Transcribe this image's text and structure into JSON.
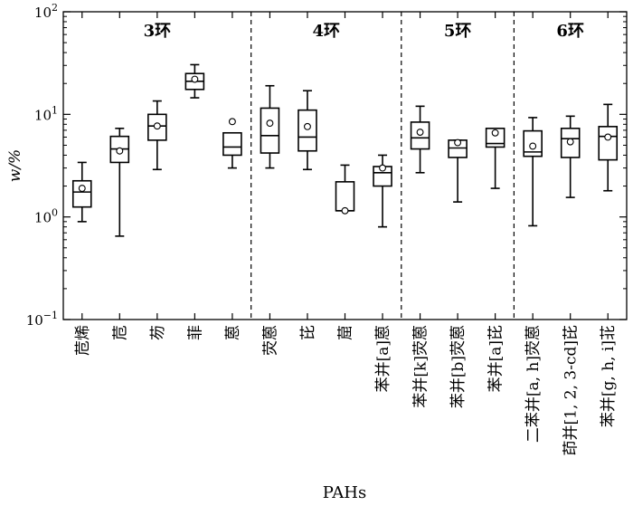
{
  "chart_data": {
    "type": "boxplot",
    "xlabel": "PAHs",
    "ylabel": "w/%",
    "yscale": "log",
    "ylim": [
      0.1,
      100
    ],
    "yticks": [
      {
        "value": 0.1,
        "base": "10",
        "exp": "−1"
      },
      {
        "value": 1,
        "base": "10",
        "exp": "0"
      },
      {
        "value": 10,
        "base": "10",
        "exp": "1"
      },
      {
        "value": 100,
        "base": "10",
        "exp": "2"
      }
    ],
    "groups": [
      {
        "label": "3环",
        "count": 5
      },
      {
        "label": "4环",
        "count": 4
      },
      {
        "label": "5环",
        "count": 3
      },
      {
        "label": "6环",
        "count": 3
      }
    ],
    "categories": [
      "苊烯",
      "苊",
      "芴",
      "菲",
      "蒽",
      "荧蒽",
      "芘",
      "䓛",
      "苯并[a]蒽",
      "苯并[k]荧蒽",
      "苯并[b]荧蒽",
      "苯并[a]芘",
      "二苯并[a, h]荧蒽",
      "茚并[1, 2, 3-cd]芘",
      "苯并[g, h, i]苝"
    ],
    "boxes": [
      {
        "min": 0.9,
        "q1": 1.25,
        "median": 1.75,
        "q3": 2.25,
        "max": 3.4,
        "mean": 1.9
      },
      {
        "min": 0.65,
        "q1": 3.4,
        "median": 4.6,
        "q3": 6.1,
        "max": 7.3,
        "mean": 4.4
      },
      {
        "min": 2.9,
        "q1": 5.6,
        "median": 7.7,
        "q3": 10.0,
        "max": 13.5,
        "mean": 7.7
      },
      {
        "min": 14.5,
        "q1": 17.5,
        "median": 21.0,
        "q3": 25.0,
        "max": 30.5,
        "mean": 22.0
      },
      {
        "min": 3.0,
        "q1": 4.0,
        "median": 4.8,
        "q3": 6.6,
        "max": 6.6,
        "mean": 8.5
      },
      {
        "min": 3.0,
        "q1": 4.2,
        "median": 6.2,
        "q3": 11.5,
        "max": 19.0,
        "mean": 8.2
      },
      {
        "min": 2.9,
        "q1": 4.4,
        "median": 6.0,
        "q3": 11.0,
        "max": 17.0,
        "mean": 7.6
      },
      {
        "min": 1.15,
        "q1": 1.15,
        "median": 1.15,
        "q3": 2.2,
        "max": 3.2,
        "mean": 1.15
      },
      {
        "min": 0.8,
        "q1": 2.0,
        "median": 2.7,
        "q3": 3.1,
        "max": 4.0,
        "mean": 3.0
      },
      {
        "min": 2.7,
        "q1": 4.6,
        "median": 5.9,
        "q3": 8.4,
        "max": 12.0,
        "mean": 6.7
      },
      {
        "min": 1.4,
        "q1": 3.8,
        "median": 4.7,
        "q3": 5.6,
        "max": 5.6,
        "mean": 5.3
      },
      {
        "min": 1.9,
        "q1": 4.8,
        "median": 5.2,
        "q3": 7.3,
        "max": 7.3,
        "mean": 6.6
      },
      {
        "min": 0.82,
        "q1": 3.9,
        "median": 4.3,
        "q3": 6.9,
        "max": 9.3,
        "mean": 4.9
      },
      {
        "min": 1.55,
        "q1": 3.8,
        "median": 5.8,
        "q3": 7.3,
        "max": 9.6,
        "mean": 5.4
      },
      {
        "min": 1.8,
        "q1": 3.6,
        "median": 6.1,
        "q3": 7.6,
        "max": 12.5,
        "mean": 6.0
      }
    ],
    "grid": false,
    "legend": "none"
  }
}
